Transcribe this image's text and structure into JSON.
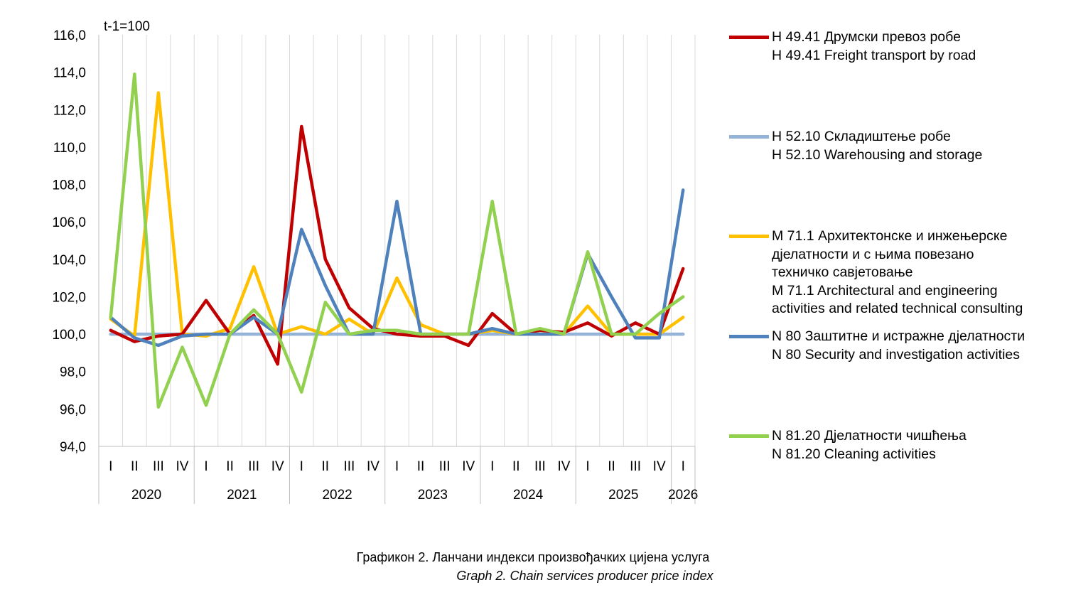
{
  "chart_data": {
    "type": "line",
    "unit_label": "t-1=100",
    "ylim": [
      94,
      116
    ],
    "ytick_labels": [
      "94,0",
      "96,0",
      "98,0",
      "100,0",
      "102,0",
      "104,0",
      "106,0",
      "108,0",
      "110,0",
      "112,0",
      "114,0",
      "116,0"
    ],
    "quarters": [
      "I",
      "II",
      "III",
      "IV",
      "I",
      "II",
      "III",
      "IV",
      "I",
      "II",
      "III",
      "IV",
      "I",
      "II",
      "III",
      "IV",
      "I",
      "II",
      "III",
      "IV",
      "I",
      "II",
      "III",
      "IV",
      "I"
    ],
    "years": [
      {
        "label": "2020",
        "quarters": 4
      },
      {
        "label": "2021",
        "quarters": 4
      },
      {
        "label": "2022",
        "quarters": 4
      },
      {
        "label": "2023",
        "quarters": 4
      },
      {
        "label": "2024",
        "quarters": 4
      },
      {
        "label": "2025",
        "quarters": 4
      },
      {
        "label": "2026",
        "quarters": 1
      }
    ],
    "grid": "vertical",
    "legend_position": "right",
    "series": [
      {
        "id": "h4941",
        "color": "#c00000",
        "values": [
          100.2,
          99.6,
          99.9,
          100.0,
          101.8,
          100.0,
          101.0,
          98.4,
          111.1,
          104.0,
          101.4,
          100.3,
          100.0,
          99.9,
          99.9,
          99.4,
          101.1,
          100.0,
          100.2,
          100.1,
          100.6,
          99.9,
          100.6,
          100.0,
          103.5
        ],
        "legend": [
          "H 49.41 Друмски превоз робе",
          "H 49.41 Freight transport by road"
        ]
      },
      {
        "id": "h5210",
        "color": "#95b3d7",
        "values": [
          100.0,
          100.0,
          100.0,
          100.0,
          100.0,
          100.0,
          100.0,
          100.0,
          100.0,
          100.0,
          100.0,
          100.0,
          100.0,
          100.0,
          100.0,
          100.0,
          100.0,
          100.0,
          100.0,
          100.0,
          100.0,
          100.0,
          100.0,
          100.0,
          100.0
        ],
        "legend": [
          "H 52.10 Складиштење робе",
          "H 52.10 Warehousing and storage"
        ]
      },
      {
        "id": "m711",
        "color": "#ffc000",
        "values": [
          100.8,
          99.9,
          112.9,
          100.0,
          99.9,
          100.3,
          103.6,
          100.0,
          100.4,
          100.0,
          100.8,
          100.0,
          103.0,
          100.5,
          100.0,
          100.0,
          100.2,
          100.0,
          100.0,
          100.0,
          101.5,
          100.0,
          100.0,
          100.0,
          100.9
        ],
        "legend": [
          "M 71.1 Архитектонске и инжењерске",
          "дјелатности и с њима повезано",
          "техничко савјетовање",
          "M 71.1 Architectural and engineering",
          "activities and related technical consulting"
        ]
      },
      {
        "id": "n80",
        "color": "#4f81bd",
        "values": [
          100.9,
          99.8,
          99.4,
          99.9,
          100.0,
          100.0,
          100.9,
          100.0,
          105.6,
          102.6,
          100.0,
          100.0,
          107.1,
          100.0,
          100.0,
          100.0,
          100.3,
          100.0,
          100.0,
          100.0,
          104.3,
          102.0,
          99.8,
          99.8,
          107.7
        ],
        "legend": [
          "N 80 Заштитне и истражне дјелатности",
          "N 80 Security and investigation activities"
        ]
      },
      {
        "id": "n8120",
        "color": "#92d050",
        "values": [
          100.9,
          113.9,
          96.1,
          99.3,
          96.2,
          100.0,
          101.3,
          100.0,
          96.9,
          101.7,
          100.0,
          100.2,
          100.2,
          100.0,
          100.0,
          100.0,
          107.1,
          100.0,
          100.3,
          100.0,
          104.4,
          100.0,
          100.0,
          101.1,
          102.0
        ],
        "legend": [
          "N 81.20 Дјелатности чишћења",
          "N 81.20 Cleaning activities"
        ]
      }
    ]
  },
  "caption": {
    "line1": "Графикон 2. Ланчани индекси произвођачких цијена услуга",
    "line2": "Graph 2. Chain services producer price index"
  }
}
